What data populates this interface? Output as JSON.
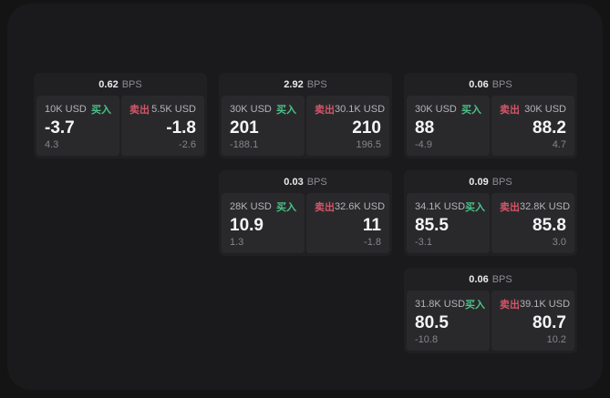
{
  "theme": {
    "background": "#141415",
    "surface": "#1a1a1c",
    "card_bg": "#202023",
    "panel_bg": "#29292c",
    "buy_color": "#4cc187",
    "sell_color": "#d25668",
    "price_color": "#f5f5f7",
    "muted_color": "#85858a"
  },
  "labels": {
    "buy": "买入",
    "sell": "卖出",
    "bps_unit": "BPS"
  },
  "cards": [
    {
      "bps": "0.62",
      "buy": {
        "notional": "10K USD",
        "price": "-3.7",
        "delta": "4.3"
      },
      "sell": {
        "notional": "5.5K USD",
        "price": "-1.8",
        "delta": "-2.6"
      }
    },
    {
      "bps": "2.92",
      "buy": {
        "notional": "30K USD",
        "price": "201",
        "delta": "-188.1"
      },
      "sell": {
        "notional": "30.1K USD",
        "price": "210",
        "delta": "196.5"
      }
    },
    {
      "bps": "0.06",
      "buy": {
        "notional": "30K USD",
        "price": "88",
        "delta": "-4.9"
      },
      "sell": {
        "notional": "30K USD",
        "price": "88.2",
        "delta": "4.7"
      }
    },
    {
      "bps": "0.03",
      "buy": {
        "notional": "28K USD",
        "price": "10.9",
        "delta": "1.3"
      },
      "sell": {
        "notional": "32.6K USD",
        "price": "11",
        "delta": "-1.8"
      }
    },
    {
      "bps": "0.09",
      "buy": {
        "notional": "34.1K USD",
        "price": "85.5",
        "delta": "-3.1"
      },
      "sell": {
        "notional": "32.8K USD",
        "price": "85.8",
        "delta": "3.0"
      }
    },
    {
      "bps": "0.06",
      "buy": {
        "notional": "31.8K USD",
        "price": "80.5",
        "delta": "-10.8"
      },
      "sell": {
        "notional": "39.1K USD",
        "price": "80.7",
        "delta": "10.2"
      }
    }
  ]
}
